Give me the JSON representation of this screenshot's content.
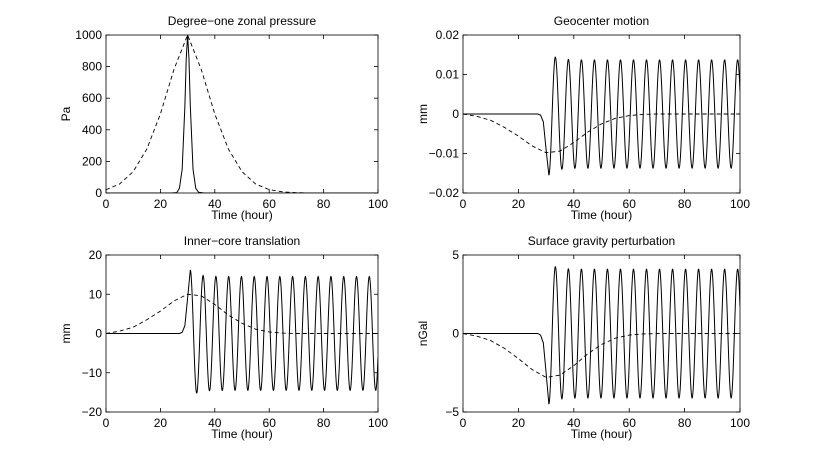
{
  "figure": {
    "layout": "2x2",
    "colors": {
      "background": "#ffffff",
      "axes": "#000000",
      "lines": "#000000"
    }
  },
  "chart_data": [
    {
      "type": "line",
      "title": "Degree−one zonal pressure",
      "xlabel": "Time (hour)",
      "ylabel": "Pa",
      "xlim": [
        0,
        100
      ],
      "ylim": [
        0,
        1000
      ],
      "xticks": [
        "0",
        "20",
        "40",
        "60",
        "80",
        "100"
      ],
      "yticks": [
        "0",
        "200",
        "400",
        "600",
        "800",
        "1000"
      ],
      "series": [
        {
          "name": "dashed",
          "style": "dashed",
          "x": [
            0,
            5,
            10,
            15,
            20,
            25,
            30,
            35,
            40,
            45,
            50,
            55,
            60,
            65,
            70,
            75,
            80,
            85,
            90,
            95,
            100
          ],
          "y": [
            21,
            57,
            135,
            278,
            500,
            783,
            1000,
            783,
            500,
            278,
            135,
            57,
            21,
            7,
            2,
            0,
            0,
            0,
            0,
            0,
            0
          ]
        },
        {
          "name": "solid",
          "style": "solid",
          "x": [
            0,
            24,
            26,
            27,
            28,
            29,
            29.5,
            30,
            30.5,
            31,
            32,
            33,
            34,
            36,
            100
          ],
          "y": [
            0,
            0,
            2,
            30,
            150,
            550,
            850,
            1000,
            850,
            550,
            150,
            30,
            5,
            0,
            0
          ]
        }
      ]
    },
    {
      "type": "line",
      "title": "Geocenter motion",
      "xlabel": "Time (hour)",
      "ylabel": "mm",
      "xlim": [
        0,
        100
      ],
      "ylim": [
        -0.02,
        0.02
      ],
      "xticks": [
        "0",
        "20",
        "40",
        "60",
        "80",
        "100"
      ],
      "yticks": [
        "−0.02",
        "−0.01",
        "0",
        "0.01",
        "0.02"
      ],
      "series": [
        {
          "name": "dashed",
          "style": "dashed",
          "x": [
            0,
            5,
            10,
            15,
            20,
            25,
            30,
            35,
            40,
            45,
            50,
            55,
            60,
            65,
            70,
            75,
            80,
            85,
            90,
            95,
            100
          ],
          "y": [
            0,
            -0.0006,
            -0.0016,
            -0.0034,
            -0.0056,
            -0.0081,
            -0.0098,
            -0.0094,
            -0.0072,
            -0.0046,
            -0.0025,
            -0.0011,
            -0.0004,
            -0.0001,
            0,
            0,
            0,
            0,
            0,
            0,
            0
          ]
        },
        {
          "name": "solid",
          "style": "solid",
          "pre": {
            "x": [
              0,
              27,
              28,
              29,
              30,
              31
            ],
            "y": [
              0,
              0,
              -0.0003,
              -0.002,
              -0.009,
              -0.0155
            ]
          },
          "oscillation": {
            "start": 31,
            "end": 100,
            "period": 4.7,
            "mean": 0,
            "amplitude": 0.0137,
            "first_amplitude": 0.0155,
            "initial_phase": "trough"
          }
        }
      ]
    },
    {
      "type": "line",
      "title": "Inner−core translation",
      "xlabel": "Time (hour)",
      "ylabel": "mm",
      "xlim": [
        0,
        100
      ],
      "ylim": [
        -20,
        20
      ],
      "xticks": [
        "0",
        "20",
        "40",
        "60",
        "80",
        "100"
      ],
      "yticks": [
        "−20",
        "−10",
        "0",
        "10",
        "20"
      ],
      "series": [
        {
          "name": "dashed",
          "style": "dashed",
          "x": [
            0,
            5,
            10,
            15,
            20,
            25,
            30,
            35,
            40,
            45,
            50,
            55,
            60,
            65,
            70,
            75,
            80,
            85,
            90,
            95,
            100
          ],
          "y": [
            0,
            0.6,
            1.6,
            3.5,
            5.7,
            8.3,
            10.0,
            9.6,
            7.4,
            4.7,
            2.6,
            1.1,
            0.4,
            0.1,
            0,
            0,
            0,
            0,
            0,
            0,
            0
          ]
        },
        {
          "name": "solid",
          "style": "solid",
          "pre": {
            "x": [
              0,
              27,
              28,
              29,
              30,
              31
            ],
            "y": [
              0,
              0,
              0.3,
              2.0,
              9.0,
              16.2
            ]
          },
          "oscillation": {
            "start": 31,
            "end": 100,
            "period": 4.7,
            "mean": 0,
            "amplitude": 14.5,
            "first_amplitude": 16.2,
            "initial_phase": "crest"
          }
        }
      ]
    },
    {
      "type": "line",
      "title": "Surface gravity perturbation",
      "xlabel": "Time (hour)",
      "ylabel": "nGal",
      "xlim": [
        0,
        100
      ],
      "ylim": [
        -5,
        5
      ],
      "xticks": [
        "0",
        "20",
        "40",
        "60",
        "80",
        "100"
      ],
      "yticks": [
        "−5",
        "0",
        "5"
      ],
      "series": [
        {
          "name": "dashed",
          "style": "dashed",
          "x": [
            0,
            5,
            10,
            15,
            20,
            25,
            30,
            35,
            40,
            45,
            50,
            55,
            60,
            65,
            70,
            75,
            80,
            85,
            90,
            95,
            100
          ],
          "y": [
            0,
            -0.17,
            -0.45,
            -0.95,
            -1.6,
            -2.3,
            -2.8,
            -2.65,
            -2.05,
            -1.3,
            -0.7,
            -0.3,
            -0.1,
            -0.03,
            0,
            0,
            0,
            0,
            0,
            0,
            0
          ]
        },
        {
          "name": "solid",
          "style": "solid",
          "pre": {
            "x": [
              0,
              27,
              28,
              29,
              30,
              31
            ],
            "y": [
              0,
              0,
              -0.1,
              -0.6,
              -2.5,
              -4.5
            ]
          },
          "oscillation": {
            "start": 31,
            "end": 100,
            "period": 4.7,
            "mean": 0,
            "amplitude": 4.1,
            "first_amplitude": 4.5,
            "initial_phase": "trough"
          }
        }
      ]
    }
  ]
}
